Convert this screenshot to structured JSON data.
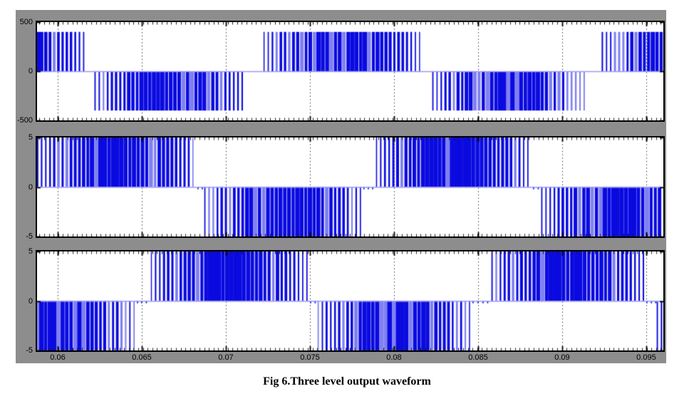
{
  "figure": {
    "caption": "Fig 6.Three level output waveform",
    "background_color": "#8d8d8d",
    "axis_color": "#000000",
    "grid_color": "#3c3c3c",
    "waveform_color": "#0a0ae0",
    "waveform_color_light": "#8080f0",
    "zero_line_color": "#9a9af5"
  },
  "chart_data": [
    {
      "type": "area",
      "name": "three-level-line-voltage-pwm",
      "ylim": [
        -500,
        500
      ],
      "yticks": [
        500,
        0,
        -500
      ],
      "ytick_labels": [
        "500",
        "0",
        "-500"
      ],
      "xlim": [
        0.05877,
        0.09602
      ],
      "xticks": [
        0.06,
        0.065,
        0.07,
        0.075,
        0.08,
        0.085,
        0.09,
        0.095
      ],
      "xtick_labels": [
        "0.06",
        "0.065",
        "0.07",
        "0.075",
        "0.08",
        "0.085",
        "0.09",
        "0.095"
      ],
      "show_xtick_labels": false,
      "grid": "vertical-dotted",
      "legend": "none",
      "carrier_period_s": 0.00025,
      "minor_tick_period_s": 0.00028,
      "duty_min": 0.28,
      "duty_max": 0.97,
      "gap_ripple": false,
      "bursts": [
        {
          "start": 0.05877,
          "end": 0.06165,
          "level": 400,
          "full_start": 0.0525
        },
        {
          "start": 0.0622,
          "end": 0.07119,
          "level": -400
        },
        {
          "start": 0.07225,
          "end": 0.08157,
          "level": 400
        },
        {
          "start": 0.08229,
          "end": 0.0914,
          "level": -400
        },
        {
          "start": 0.09237,
          "end": 0.09602,
          "level": 400,
          "full_end": 0.1017
        }
      ]
    },
    {
      "type": "area",
      "name": "three-level-pwm-phase-a",
      "ylim": [
        -5,
        5
      ],
      "yticks": [
        5,
        0,
        -5
      ],
      "ytick_labels": [
        "5",
        "0",
        "-5"
      ],
      "xlim": [
        0.05877,
        0.09602
      ],
      "xticks": [
        0.06,
        0.065,
        0.07,
        0.075,
        0.08,
        0.085,
        0.09,
        0.095
      ],
      "xtick_labels": [
        "0.06",
        "0.065",
        "0.07",
        "0.075",
        "0.08",
        "0.085",
        "0.09",
        "0.095"
      ],
      "show_xtick_labels": false,
      "grid": "vertical-dotted",
      "legend": "none",
      "carrier_period_s": 0.00025,
      "minor_tick_period_s": 0.00028,
      "duty_min": 0.28,
      "duty_max": 0.97,
      "gap_ripple": true,
      "bursts": [
        {
          "start": 0.05877,
          "end": 0.06822,
          "level": 5
        },
        {
          "start": 0.06873,
          "end": 0.07809,
          "level": -5
        },
        {
          "start": 0.07894,
          "end": 0.08818,
          "level": 5
        },
        {
          "start": 0.08877,
          "end": 0.09602,
          "level": -5,
          "full_end": 0.0981
        }
      ]
    },
    {
      "type": "area",
      "name": "three-level-pwm-phase-b",
      "ylim": [
        -5,
        5
      ],
      "yticks": [
        5,
        0,
        -5
      ],
      "ytick_labels": [
        "5",
        "0",
        "-5"
      ],
      "xlim": [
        0.05877,
        0.09602
      ],
      "xticks": [
        0.06,
        0.065,
        0.07,
        0.075,
        0.08,
        0.085,
        0.09,
        0.095
      ],
      "xtick_labels": [
        "0.06",
        "0.065",
        "0.07",
        "0.075",
        "0.08",
        "0.085",
        "0.09",
        "0.095"
      ],
      "show_xtick_labels": true,
      "grid": "vertical-dotted",
      "legend": "none",
      "carrier_period_s": 0.00025,
      "minor_tick_period_s": 0.00028,
      "duty_min": 0.28,
      "duty_max": 0.97,
      "gap_ripple": true,
      "bursts": [
        {
          "start": 0.05877,
          "end": 0.06462,
          "level": -5,
          "full_start": 0.05551
        },
        {
          "start": 0.06555,
          "end": 0.07492,
          "level": 5
        },
        {
          "start": 0.07547,
          "end": 0.08458,
          "level": -5
        },
        {
          "start": 0.08581,
          "end": 0.09492,
          "level": 5
        },
        {
          "start": 0.09564,
          "end": 0.09602,
          "level": -5,
          "full_end": 0.1047
        }
      ]
    }
  ]
}
